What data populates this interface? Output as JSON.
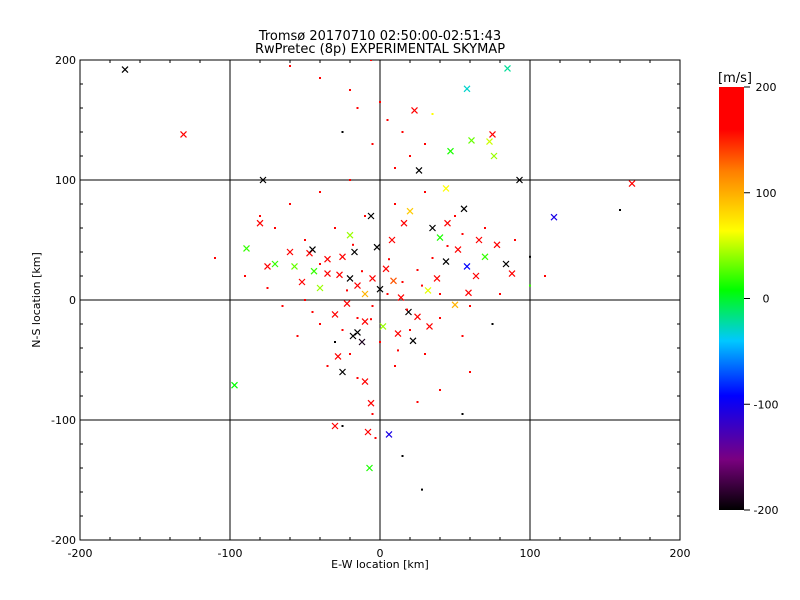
{
  "chart_data": {
    "type": "scatter",
    "title": "Tromsø 20170710 02:50:00-02:51:43",
    "subtitle": "RwPretec (8p) EXPERIMENTAL SKYMAP",
    "xlabel": "E-W location [km]",
    "ylabel": "N-S location [km]",
    "xlim": [
      -200,
      200
    ],
    "ylim": [
      -200,
      200
    ],
    "x_ticks": [
      "-200",
      "-100",
      "0",
      "100",
      "200"
    ],
    "y_ticks": [
      "-200",
      "-100",
      "0",
      "100",
      "200"
    ],
    "grid": true,
    "colorbar": {
      "label": "[m/s]",
      "range": [
        -200,
        200
      ],
      "ticks": [
        "-200",
        "-100",
        "0",
        "100",
        "200"
      ],
      "colormap": "rainbow (black-purple-blue-cyan-green-yellow-red)"
    },
    "series": [
      {
        "marker": "x",
        "points": [
          [
            -170,
            192,
            -200
          ],
          [
            -131,
            138,
            200
          ],
          [
            -78,
            100,
            -200
          ],
          [
            -97,
            -71,
            0
          ],
          [
            -57,
            28,
            40
          ],
          [
            -47,
            39,
            180
          ],
          [
            -35,
            22,
            200
          ],
          [
            -28,
            -47,
            200
          ],
          [
            -30,
            -105,
            200
          ],
          [
            -8,
            -110,
            200
          ],
          [
            -7,
            -140,
            10
          ],
          [
            6,
            -112,
            -110
          ],
          [
            -6,
            -86,
            200
          ],
          [
            -10,
            -68,
            200
          ],
          [
            -25,
            -60,
            -200
          ],
          [
            -18,
            -30,
            -200
          ],
          [
            -15,
            -27,
            -200
          ],
          [
            -12,
            -35,
            -190
          ],
          [
            23,
            158,
            200
          ],
          [
            26,
            108,
            -200
          ],
          [
            44,
            93,
            100
          ],
          [
            58,
            176,
            -40
          ],
          [
            85,
            193,
            -30
          ],
          [
            93,
            100,
            -200
          ],
          [
            116,
            69,
            -110
          ],
          [
            168,
            97,
            200
          ],
          [
            75,
            138,
            200
          ],
          [
            73,
            132,
            80
          ],
          [
            61,
            133,
            40
          ],
          [
            47,
            124,
            10
          ],
          [
            76,
            120,
            60
          ],
          [
            56,
            76,
            -200
          ],
          [
            45,
            64,
            200
          ],
          [
            35,
            60,
            -200
          ],
          [
            20,
            74,
            120
          ],
          [
            16,
            64,
            200
          ],
          [
            -6,
            70,
            -200
          ],
          [
            -20,
            54,
            60
          ],
          [
            -45,
            42,
            -200
          ],
          [
            -60,
            40,
            200
          ],
          [
            -80,
            64,
            200
          ],
          [
            -89,
            43,
            20
          ],
          [
            -70,
            30,
            20
          ],
          [
            -75,
            28,
            190
          ],
          [
            -52,
            15,
            200
          ],
          [
            -40,
            10,
            60
          ],
          [
            -27,
            21,
            200
          ],
          [
            -20,
            18,
            -200
          ],
          [
            -15,
            12,
            200
          ],
          [
            -10,
            5,
            130
          ],
          [
            -5,
            18,
            200
          ],
          [
            0,
            9,
            -200
          ],
          [
            4,
            26,
            200
          ],
          [
            9,
            16,
            160
          ],
          [
            14,
            2,
            200
          ],
          [
            19,
            -10,
            -200
          ],
          [
            25,
            -14,
            200
          ],
          [
            32,
            8,
            90
          ],
          [
            38,
            18,
            200
          ],
          [
            44,
            32,
            -200
          ],
          [
            52,
            42,
            200
          ],
          [
            58,
            28,
            -100
          ],
          [
            64,
            20,
            200
          ],
          [
            70,
            36,
            20
          ],
          [
            78,
            46,
            200
          ],
          [
            84,
            30,
            -200
          ],
          [
            88,
            22,
            200
          ],
          [
            -22,
            -3,
            200
          ],
          [
            -30,
            -12,
            190
          ],
          [
            -10,
            -18,
            200
          ],
          [
            2,
            -22,
            60
          ],
          [
            12,
            -28,
            200
          ],
          [
            22,
            -34,
            -200
          ],
          [
            33,
            -22,
            200
          ],
          [
            50,
            -4,
            130
          ],
          [
            59,
            6,
            200
          ],
          [
            66,
            50,
            200
          ],
          [
            40,
            52,
            10
          ],
          [
            8,
            50,
            200
          ],
          [
            -2,
            44,
            -200
          ],
          [
            -35,
            34,
            200
          ],
          [
            -44,
            24,
            20
          ],
          [
            -25,
            36,
            200
          ],
          [
            -17,
            40,
            -200
          ]
        ]
      },
      {
        "marker": "dot",
        "points": [
          [
            -60,
            195,
            200
          ],
          [
            -40,
            185,
            200
          ],
          [
            -20,
            175,
            190
          ],
          [
            -6,
            200,
            200
          ],
          [
            -15,
            160,
            200
          ],
          [
            5,
            150,
            200
          ],
          [
            15,
            140,
            200
          ],
          [
            30,
            130,
            180
          ],
          [
            20,
            120,
            200
          ],
          [
            -5,
            130,
            200
          ],
          [
            -25,
            140,
            -200
          ],
          [
            0,
            165,
            200
          ],
          [
            35,
            155,
            100
          ],
          [
            10,
            110,
            200
          ],
          [
            -20,
            100,
            200
          ],
          [
            -40,
            90,
            200
          ],
          [
            -60,
            80,
            200
          ],
          [
            -80,
            70,
            200
          ],
          [
            -70,
            60,
            200
          ],
          [
            -50,
            50,
            190
          ],
          [
            -30,
            60,
            200
          ],
          [
            -10,
            70,
            200
          ],
          [
            10,
            80,
            200
          ],
          [
            30,
            90,
            200
          ],
          [
            50,
            70,
            200
          ],
          [
            70,
            60,
            200
          ],
          [
            90,
            50,
            200
          ],
          [
            100,
            36,
            -200
          ],
          [
            110,
            20,
            200
          ],
          [
            100,
            12,
            20
          ],
          [
            80,
            5,
            200
          ],
          [
            60,
            -5,
            200
          ],
          [
            40,
            -15,
            200
          ],
          [
            20,
            -25,
            200
          ],
          [
            0,
            -35,
            200
          ],
          [
            -20,
            -45,
            200
          ],
          [
            -35,
            -55,
            200
          ],
          [
            -15,
            -65,
            200
          ],
          [
            10,
            -55,
            200
          ],
          [
            30,
            -45,
            200
          ],
          [
            55,
            -30,
            200
          ],
          [
            75,
            -20,
            -200
          ],
          [
            60,
            -60,
            200
          ],
          [
            40,
            -75,
            200
          ],
          [
            25,
            -85,
            200
          ],
          [
            -5,
            -95,
            200
          ],
          [
            -25,
            -105,
            -200
          ],
          [
            -3,
            -115,
            200
          ],
          [
            15,
            -130,
            -200
          ],
          [
            28,
            -158,
            -200
          ],
          [
            55,
            -95,
            -200
          ],
          [
            160,
            75,
            -200
          ],
          [
            -90,
            20,
            200
          ],
          [
            -110,
            35,
            200
          ],
          [
            -75,
            10,
            200
          ],
          [
            -50,
            0,
            200
          ],
          [
            -40,
            -20,
            200
          ],
          [
            -55,
            -30,
            200
          ],
          [
            -45,
            -10,
            190
          ],
          [
            -65,
            -5,
            200
          ],
          [
            -30,
            -35,
            -200
          ],
          [
            -25,
            -25,
            200
          ],
          [
            -15,
            -15,
            200
          ],
          [
            -5,
            -5,
            200
          ],
          [
            5,
            5,
            200
          ],
          [
            15,
            15,
            200
          ],
          [
            25,
            25,
            200
          ],
          [
            35,
            35,
            200
          ],
          [
            45,
            45,
            200
          ],
          [
            55,
            55,
            200
          ],
          [
            -12,
            24,
            200
          ],
          [
            -22,
            8,
            200
          ],
          [
            18,
            -8,
            200
          ],
          [
            28,
            12,
            200
          ],
          [
            6,
            34,
            200
          ],
          [
            -6,
            -16,
            200
          ],
          [
            40,
            5,
            200
          ],
          [
            -40,
            30,
            200
          ],
          [
            12,
            -42,
            200
          ],
          [
            -18,
            46,
            200
          ]
        ]
      }
    ]
  }
}
